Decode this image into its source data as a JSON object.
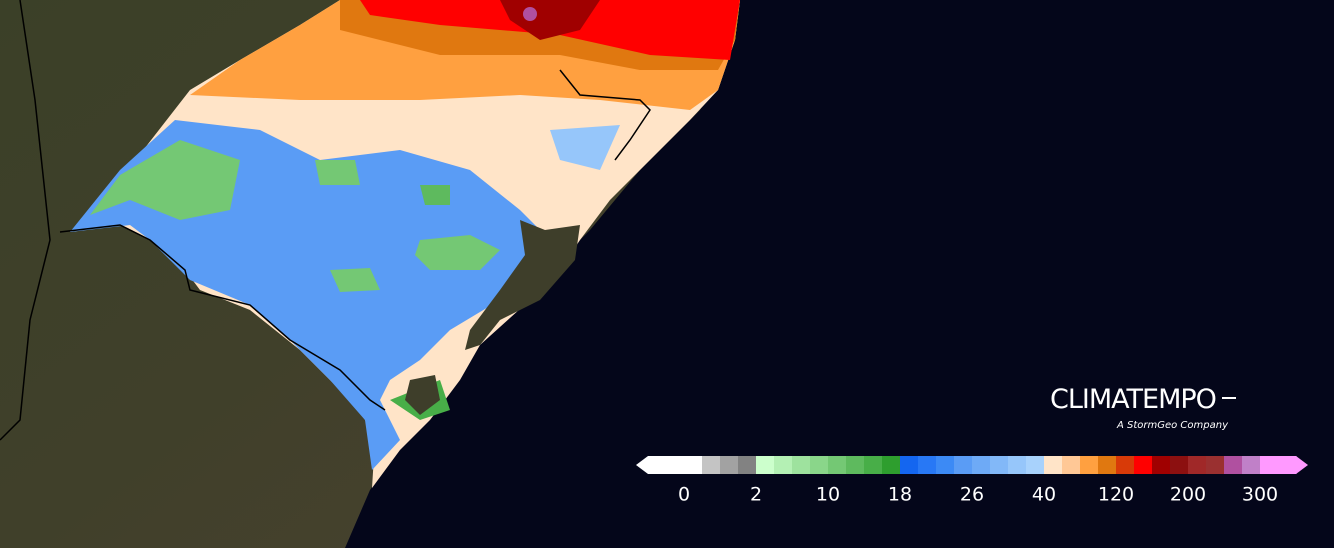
{
  "brand": {
    "name": "CLIMATEMPO",
    "tagline": "A StormGeo Company"
  },
  "colorbar": {
    "labels": [
      "0",
      "2",
      "10",
      "18",
      "26",
      "40",
      "120",
      "200",
      "300"
    ],
    "colors": [
      "#ffffff",
      "#ffffff",
      "#ffffff",
      "#c4c4c4",
      "#a2a2a2",
      "#828282",
      "#ccffcc",
      "#b4f0b4",
      "#9ee29e",
      "#8ad68a",
      "#74c874",
      "#5eba5e",
      "#48ae48",
      "#2e9e2e",
      "#1466f0",
      "#2878f5",
      "#3c8af5",
      "#5a9cf5",
      "#6eaaf6",
      "#82b8f8",
      "#96c6fa",
      "#a8d2fc",
      "#ffe4c8",
      "#ffc896",
      "#ffa040",
      "#e07810",
      "#d83a08",
      "#ff0000",
      "#a00000",
      "#8c1010",
      "#a02828",
      "#9a3030",
      "#b050a0",
      "#c080c8",
      "#ff99ff",
      "#ff99ff"
    ]
  }
}
